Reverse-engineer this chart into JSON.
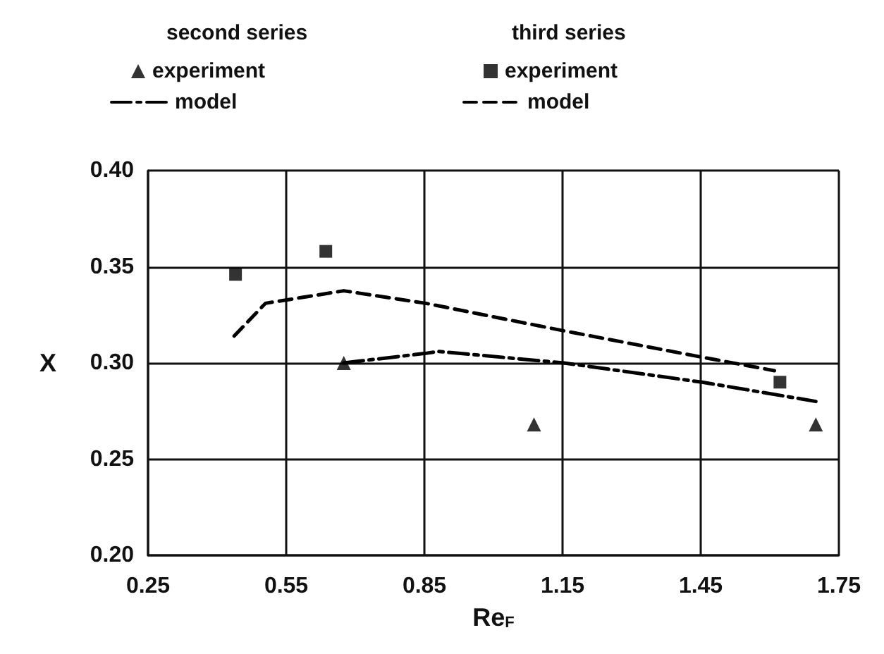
{
  "chart_data": {
    "type": "line",
    "xlabel": "Re$_{F}$",
    "ylabel": "X",
    "annotations": [
      "second series",
      "third series"
    ],
    "xlim": [
      0.25,
      1.75
    ],
    "xticks": [
      0.25,
      0.55,
      0.85,
      1.15,
      1.45,
      1.75
    ],
    "ylim": [
      0.2,
      0.4
    ],
    "yticks": [
      {
        "value": 0.2,
        "label": "0.20"
      },
      {
        "value": 0.25,
        "label": "0.25"
      },
      {
        "value": 0.3,
        "label": "0.30"
      },
      {
        "value": 0.35,
        "label": "0.35"
      },
      {
        "value": 0.4,
        "label": "0.40"
      }
    ],
    "grid": true,
    "legend": "top",
    "series": [
      {
        "name": "experiment",
        "type": "scatter",
        "marker": "triangle",
        "color": "#000000",
        "x": [
          0.675,
          1.088,
          1.7
        ],
        "values": [
          0.3,
          0.268,
          0.268
        ]
      },
      {
        "name": "model",
        "type": "line",
        "marker": "none",
        "line_style": "dashdot",
        "color": "#000000",
        "x": [
          0.675,
          0.853,
          0.88,
          1.153,
          1.453,
          1.7
        ],
        "values": [
          0.3,
          0.305,
          0.306,
          0.3,
          0.29,
          0.28
        ]
      },
      {
        "name": "experiment",
        "type": "scatter",
        "marker": "square",
        "color": "#000000",
        "x": [
          0.44,
          0.636,
          1.622
        ],
        "values": [
          0.346,
          0.358,
          0.29
        ]
      },
      {
        "name": "model",
        "type": "line",
        "marker": "none",
        "line_style": "dashed",
        "color": "#000000",
        "x": [
          0.437,
          0.505,
          0.675,
          0.853,
          1.153,
          1.453,
          1.61
        ],
        "values": [
          0.314,
          0.331,
          0.3375,
          0.331,
          0.3167,
          0.303,
          0.296
        ]
      }
    ]
  }
}
